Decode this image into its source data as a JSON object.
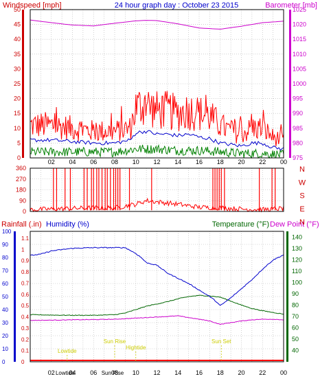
{
  "chart_data": [
    {
      "type": "line",
      "panel": "wind-barometer",
      "title": "24 hour graph day : October 23 2015",
      "left_label": "Windspeed [mph]",
      "right_label": "Barometer [mb]",
      "colors": {
        "wind_gust": "#ff0000",
        "wind_avg": "#0000cc",
        "wind_low": "#008000",
        "barometer": "#cc00cc",
        "title": "#0000cc",
        "left_axis": "#cc0000",
        "right_axis": "#cc00cc"
      },
      "ylim_left": [
        0,
        50
      ],
      "ylim_right": [
        975,
        1025
      ],
      "yticks_left": [
        "0",
        "5",
        "10",
        "15",
        "20",
        "25",
        "30",
        "35",
        "40",
        "45",
        "50"
      ],
      "yticks_right": [
        "975",
        "980",
        "985",
        "990",
        "995",
        "1000",
        "1005",
        "1010",
        "1015",
        "1020",
        "1025"
      ],
      "xticks": [
        "02",
        "04",
        "06",
        "08",
        "10",
        "12",
        "14",
        "16",
        "18",
        "20",
        "22",
        "00"
      ],
      "xrange_hours": [
        0,
        24
      ],
      "series": [
        {
          "key": "barometer",
          "axis": "right",
          "x": [
            0,
            2,
            4,
            6,
            8,
            10,
            11,
            12,
            14,
            16,
            18,
            20,
            22,
            24
          ],
          "values": [
            1021.5,
            1020.6,
            1019.8,
            1019.5,
            1020.4,
            1021.2,
            1021.4,
            1021.3,
            1020.2,
            1018.8,
            1018.4,
            1019.4,
            1020.6,
            1021.1
          ]
        },
        {
          "key": "wind_gust",
          "axis": "left",
          "x": [
            0,
            2,
            4,
            6,
            8,
            9.5,
            10,
            11,
            12,
            13,
            14,
            15,
            16,
            17,
            18,
            19,
            20,
            21,
            22,
            23,
            24
          ],
          "values": [
            11,
            11,
            10,
            9,
            9,
            10,
            17,
            18,
            16,
            16,
            15,
            16,
            15,
            14,
            11,
            9,
            8,
            10,
            10,
            7,
            6
          ]
        },
        {
          "key": "wind_avg",
          "axis": "left",
          "x": [
            0,
            2,
            4,
            6,
            8,
            9.5,
            10,
            11,
            12,
            13,
            14,
            15,
            16,
            17,
            18,
            19,
            20,
            21,
            22,
            23,
            24
          ],
          "values": [
            6,
            6,
            5.5,
            5,
            5,
            6,
            8.5,
            9,
            8,
            8,
            7.5,
            8,
            7,
            6.5,
            5,
            4.5,
            4,
            5,
            5,
            3.5,
            3
          ]
        },
        {
          "key": "wind_low",
          "axis": "left",
          "x": [
            0,
            2,
            4,
            6,
            8,
            10,
            12,
            14,
            16,
            18,
            20,
            22,
            24
          ],
          "values": [
            2,
            2,
            2,
            2,
            2,
            3,
            3,
            2.5,
            2.5,
            2,
            1.5,
            1.5,
            1
          ]
        }
      ]
    },
    {
      "type": "line",
      "panel": "wind-direction",
      "ylim": [
        0,
        360
      ],
      "yticks": [
        "0",
        "90",
        "180",
        "270",
        "360"
      ],
      "compass": [
        "N",
        "W",
        "S",
        "E",
        "N"
      ],
      "xticks": [
        "02",
        "04",
        "06",
        "08",
        "10",
        "12",
        "14",
        "16",
        "18",
        "20",
        "22",
        "00"
      ],
      "colors": {
        "direction": "#ff0000",
        "axis": "#cc0000"
      },
      "base_x": [
        0,
        2,
        4,
        6,
        8,
        10,
        11,
        12,
        14,
        16,
        18,
        20,
        22,
        24
      ],
      "base_values": [
        15,
        20,
        25,
        30,
        30,
        60,
        90,
        80,
        60,
        35,
        30,
        20,
        15,
        25
      ],
      "spikes_hours": [
        2.2,
        2.5,
        3.3,
        3.8,
        5.1,
        5.4,
        5.8,
        6.0,
        6.3,
        6.5,
        6.8,
        7.1,
        7.3,
        7.6,
        7.9,
        8.1,
        8.3,
        8.5,
        9.4,
        11.5,
        17.3,
        17.5,
        17.7,
        17.9,
        18.1,
        18.4,
        21.7,
        22.9,
        23.2
      ]
    },
    {
      "type": "line",
      "panel": "temp-humidity-rain",
      "rainfall_label": "Rainfall (.in)",
      "humidity_label": "Humidity (%)",
      "temperature_label": "Temperature (°F)",
      "dewpoint_label": "Dew Point (°F)",
      "colors": {
        "humidity": "#0000cc",
        "temperature": "#006600",
        "dewpoint": "#cc00cc",
        "rainfall": "#ff0000",
        "rain_axis": "#cc0000",
        "humidity_axis": "#0000cc",
        "temp_axis": "#006600",
        "annotation": "#cccc00"
      },
      "humidity_ticks": [
        "0",
        "10",
        "20",
        "30",
        "40",
        "50",
        "60",
        "70",
        "80",
        "90",
        "100"
      ],
      "rain_ticks": [
        "0",
        "0.1",
        "0.2",
        "0.3",
        "0.4",
        "0.5",
        "0.6",
        "0.7",
        "0.8",
        "0.9",
        "1",
        "1.1"
      ],
      "temp_ticks": [
        "40",
        "50",
        "60",
        "70",
        "80",
        "90",
        "100",
        "110",
        "120",
        "130",
        "140"
      ],
      "temp_lim": [
        30,
        145
      ],
      "xticks": [
        "02",
        "04",
        "06",
        "08",
        "10",
        "12",
        "14",
        "16",
        "18",
        "20",
        "22",
        "00"
      ],
      "series": [
        {
          "key": "humidity",
          "x": [
            0,
            1,
            2,
            4,
            6,
            8,
            9,
            10,
            10.5,
            11,
            12,
            13,
            14,
            15,
            16,
            17,
            17.5,
            18,
            18.5,
            19,
            20,
            21,
            22,
            23,
            24
          ],
          "values": [
            81.5,
            82.5,
            85,
            87,
            87.5,
            87.5,
            87.5,
            83,
            80,
            76,
            74,
            68,
            64,
            60,
            55,
            50,
            47,
            43,
            46,
            49,
            56,
            63,
            71,
            78,
            82
          ]
        },
        {
          "key": "temperature",
          "x": [
            0,
            2,
            4,
            6,
            8,
            9,
            10,
            11,
            12,
            13,
            14,
            15,
            16,
            17,
            18,
            19,
            20,
            21,
            22,
            23,
            24
          ],
          "values": [
            71.5,
            71.2,
            71,
            71,
            71.5,
            73,
            76,
            79,
            81,
            83,
            85.5,
            87.5,
            88.5,
            88,
            87,
            83.5,
            80,
            77,
            75,
            73.5,
            72
          ]
        },
        {
          "key": "dewpoint",
          "x": [
            0,
            2,
            4,
            6,
            8,
            10,
            12,
            13,
            14,
            15,
            16,
            17,
            18,
            19,
            20,
            21,
            22,
            23,
            24
          ],
          "values": [
            66.5,
            66.7,
            67,
            67.2,
            67.5,
            68.5,
            69.5,
            70,
            70.5,
            69,
            67.5,
            66,
            63,
            64.5,
            66,
            67,
            67.5,
            67.5,
            67
          ]
        },
        {
          "key": "rainfall",
          "x": [
            0,
            24
          ],
          "values": [
            0,
            0
          ]
        }
      ],
      "annotations": [
        {
          "label": "Lowtide",
          "hour": 3.5
        },
        {
          "label": "Sun Rise",
          "hour": 8.0
        },
        {
          "label": "Hightide",
          "hour": 10.0
        },
        {
          "label": "Sun Set",
          "hour": 18.1
        }
      ],
      "bottom_labels": [
        {
          "label": "Lowtide",
          "hour": 3.3
        },
        {
          "label": "Sun Rise",
          "hour": 7.8
        }
      ]
    }
  ]
}
